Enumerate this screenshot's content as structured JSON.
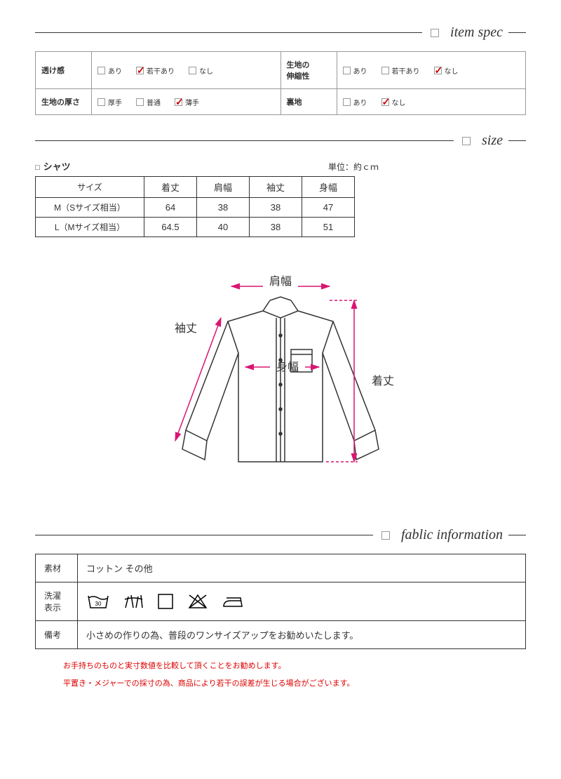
{
  "sections": {
    "item_spec": "item spec",
    "size": "size",
    "fabric": "fablic information"
  },
  "spec": {
    "rows": [
      {
        "label": "透け感",
        "options": [
          {
            "text": "あり",
            "checked": false
          },
          {
            "text": "若干あり",
            "checked": true
          },
          {
            "text": "なし",
            "checked": false
          }
        ]
      },
      {
        "label": "生地の\n伸縮性",
        "options": [
          {
            "text": "あり",
            "checked": false
          },
          {
            "text": "若干あり",
            "checked": false
          },
          {
            "text": "なし",
            "checked": true
          }
        ]
      },
      {
        "label": "生地の厚さ",
        "options": [
          {
            "text": "厚手",
            "checked": false
          },
          {
            "text": "普通",
            "checked": false
          },
          {
            "text": "薄手",
            "checked": true
          }
        ]
      },
      {
        "label": "裏地",
        "options": [
          {
            "text": "あり",
            "checked": false
          },
          {
            "text": "なし",
            "checked": true
          }
        ]
      }
    ]
  },
  "size": {
    "product": "シャツ",
    "unit": "単位：約ｃｍ",
    "columns": [
      "サイズ",
      "着丈",
      "肩幅",
      "袖丈",
      "身幅"
    ],
    "rows": [
      [
        "M（Sサイズ相当）",
        "64",
        "38",
        "38",
        "47"
      ],
      [
        "L（Mサイズ相当）",
        "64.5",
        "40",
        "38",
        "51"
      ]
    ]
  },
  "diagram": {
    "labels": {
      "shoulder": "肩幅",
      "sleeve": "袖丈",
      "width": "身幅",
      "length": "着丈"
    },
    "arrow_color": "#d91572"
  },
  "fabric": {
    "material_label": "素材",
    "material": "コットン その他",
    "care_label": "洗濯\n表示",
    "note_label": "備考",
    "note": "小さめの作りの為、普段のワンサイズアップをお勧めいたします。"
  },
  "notes": [
    "お手持ちのものと実寸数値を比較して頂くことをお勧めします。",
    "平置き・メジャーでの採寸の為、商品により若干の誤差が生じる場合がございます。"
  ]
}
